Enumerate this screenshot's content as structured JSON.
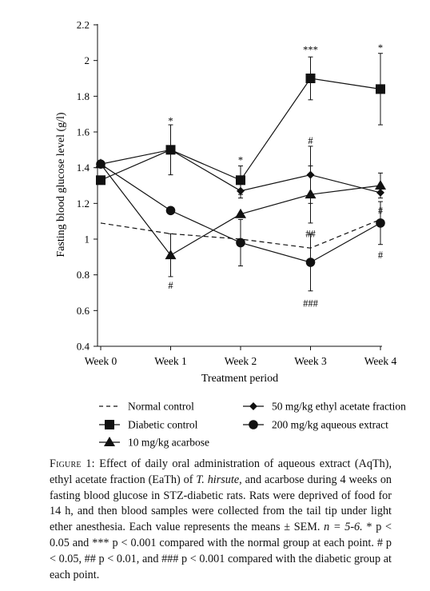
{
  "chart_data": {
    "type": "line",
    "xlabel": "Treatment period",
    "ylabel": "Fasting blood glucose level (g/l)",
    "categories": [
      "Week 0",
      "Week 1",
      "Week 2",
      "Week 3",
      "Week 4"
    ],
    "yticks": [
      "0.4",
      "0.6",
      "0.8",
      "1",
      "1.2",
      "1.4",
      "1.6",
      "1.8",
      "2",
      "2.2"
    ],
    "ylim": [
      0.4,
      2.2
    ],
    "grid": false,
    "legend_position": "bottom",
    "series": [
      {
        "name": "Normal control",
        "marker": "none",
        "dashed": true,
        "values": [
          1.09,
          1.03,
          1.0,
          0.95,
          1.11
        ],
        "sem": [
          0,
          0,
          0,
          0,
          0
        ]
      },
      {
        "name": "Diabetic control",
        "marker": "square",
        "values": [
          1.33,
          1.5,
          1.33,
          1.9,
          1.84
        ],
        "sem": [
          0,
          0.14,
          0.08,
          0.12,
          0.2
        ]
      },
      {
        "name": "10 mg/kg acarbose",
        "marker": "triangle",
        "values": [
          1.42,
          0.91,
          1.14,
          1.25,
          1.3
        ],
        "sem": [
          0,
          0.12,
          0,
          0.16,
          0.07
        ]
      },
      {
        "name": "50 mg/kg ethyl acetate fraction",
        "marker": "diamond",
        "values": [
          1.42,
          1.5,
          1.27,
          1.36,
          1.26
        ],
        "sem": [
          0,
          0,
          0.04,
          0.16,
          0
        ]
      },
      {
        "name": "200 mg/kg aqueous extract",
        "marker": "circle",
        "values": [
          1.42,
          1.16,
          0.98,
          0.87,
          1.09
        ],
        "sem": [
          0,
          0,
          0.13,
          0.16,
          0.12
        ]
      }
    ],
    "annotations": [
      {
        "category": "Week 1",
        "y": 1.66,
        "text": "*"
      },
      {
        "category": "Week 1",
        "y": 0.74,
        "text": "#"
      },
      {
        "category": "Week 2",
        "y": 1.44,
        "text": "*"
      },
      {
        "category": "Week 3",
        "y": 2.06,
        "text": "***"
      },
      {
        "category": "Week 3",
        "y": 1.55,
        "text": "#"
      },
      {
        "category": "Week 3",
        "y": 1.03,
        "text": "##"
      },
      {
        "category": "Week 3",
        "y": 0.64,
        "text": "###"
      },
      {
        "category": "Week 4",
        "y": 2.07,
        "text": "*"
      },
      {
        "category": "Week 4",
        "y": 1.16,
        "text": "#"
      },
      {
        "category": "Week 4",
        "y": 0.91,
        "text": "#"
      }
    ]
  },
  "caption": {
    "label": "Figure 1:",
    "text_1": " Effect of daily oral administration of aqueous extract (AqTh), ethyl acetate fraction (EaTh) of ",
    "species": "T. hirsute",
    "text_2": ", and acarbose during 4 weeks on fasting blood glucose in STZ-diabetic rats. Rats were deprived of food for 14 h, and then blood samples were collected from the tail tip under light ether anesthesia. Each value represents the means ± SEM. ",
    "n_text": "n = 5-6.",
    "sig_1": " * p < 0.05 and *** p < 0.001 compared with the normal group at each point. # p < 0.05, ## p < 0.01, and ### p < 0.001 compared with the diabetic group at each point."
  }
}
